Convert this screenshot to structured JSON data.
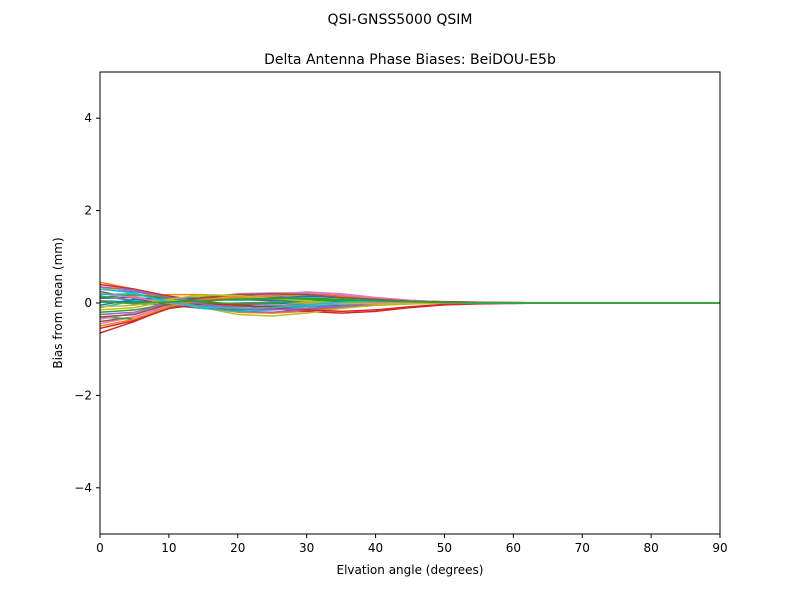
{
  "chart_data": {
    "type": "line",
    "suptitle": "QSI-GNSS5000    QSIM",
    "title": "Delta Antenna Phase Biases: BeiDOU-E5b",
    "xlabel": "Elvation angle (degrees)",
    "ylabel": "Bias from mean (mm)",
    "xlim": [
      0,
      90
    ],
    "ylim": [
      -5,
      5
    ],
    "xticks": [
      0,
      10,
      20,
      30,
      40,
      50,
      60,
      70,
      80,
      90
    ],
    "xtick_labels": [
      "0",
      "10",
      "20",
      "30",
      "40",
      "50",
      "60",
      "70",
      "80",
      "90"
    ],
    "yticks": [
      -4,
      -2,
      0,
      2,
      4
    ],
    "ytick_labels": [
      "−4",
      "−2",
      "0",
      "2",
      "4"
    ],
    "grid": false,
    "legend": "none",
    "x": [
      0,
      5,
      10,
      15,
      20,
      25,
      30,
      35,
      40,
      45,
      50,
      55,
      60,
      65,
      70,
      75,
      80,
      85,
      90
    ],
    "series": [
      {
        "color": "#1f77b4",
        "values": [
          0.1,
          0.12,
          0.05,
          0.0,
          -0.03,
          -0.02,
          0.02,
          0.05,
          0.05,
          0.03,
          0.02,
          0.01,
          0.0,
          0.0,
          0.0,
          0.0,
          0.0,
          0.0,
          0.0
        ]
      },
      {
        "color": "#ff7f0e",
        "values": [
          0.45,
          0.3,
          0.1,
          -0.1,
          -0.2,
          -0.22,
          -0.18,
          -0.1,
          -0.05,
          -0.02,
          0.0,
          0.01,
          0.01,
          0.0,
          0.0,
          0.0,
          0.0,
          0.0,
          0.0
        ]
      },
      {
        "color": "#2ca02c",
        "values": [
          -0.2,
          -0.15,
          -0.02,
          0.1,
          0.15,
          0.18,
          0.17,
          0.12,
          0.08,
          0.05,
          0.02,
          0.01,
          0.0,
          0.0,
          0.0,
          0.0,
          0.0,
          0.0,
          0.0
        ]
      },
      {
        "color": "#d62728",
        "values": [
          -0.65,
          -0.4,
          -0.1,
          0.0,
          -0.05,
          -0.12,
          -0.18,
          -0.22,
          -0.18,
          -0.1,
          -0.04,
          -0.02,
          -0.01,
          0.0,
          0.0,
          0.0,
          0.0,
          0.0,
          0.0
        ]
      },
      {
        "color": "#9467bd",
        "values": [
          0.3,
          0.25,
          0.1,
          -0.05,
          -0.18,
          -0.2,
          -0.15,
          -0.08,
          -0.03,
          0.0,
          0.01,
          0.01,
          0.0,
          0.0,
          0.0,
          0.0,
          0.0,
          0.0,
          0.0
        ]
      },
      {
        "color": "#8c564b",
        "values": [
          -0.4,
          -0.3,
          -0.05,
          0.1,
          0.15,
          0.18,
          0.2,
          0.15,
          0.1,
          0.05,
          0.03,
          0.02,
          0.01,
          0.0,
          0.0,
          0.0,
          0.0,
          0.0,
          0.0
        ]
      },
      {
        "color": "#e377c2",
        "values": [
          -0.45,
          -0.3,
          -0.05,
          0.12,
          0.2,
          0.22,
          0.22,
          0.18,
          0.1,
          0.05,
          0.02,
          0.01,
          0.0,
          0.0,
          0.0,
          0.0,
          0.0,
          0.0,
          0.0
        ]
      },
      {
        "color": "#7f7f7f",
        "values": [
          0.15,
          0.05,
          -0.02,
          -0.05,
          -0.08,
          -0.06,
          -0.02,
          0.01,
          0.02,
          0.01,
          0.0,
          0.0,
          0.0,
          0.0,
          0.0,
          0.0,
          0.0,
          0.0,
          0.0
        ]
      },
      {
        "color": "#bcbd22",
        "values": [
          0.35,
          0.2,
          0.08,
          -0.1,
          -0.25,
          -0.28,
          -0.22,
          -0.12,
          -0.05,
          -0.02,
          0.0,
          0.01,
          0.0,
          0.0,
          0.0,
          0.0,
          0.0,
          0.0,
          0.0
        ]
      },
      {
        "color": "#17becf",
        "values": [
          -0.1,
          0.05,
          0.1,
          0.08,
          0.06,
          0.08,
          0.1,
          0.08,
          0.05,
          0.03,
          0.01,
          0.0,
          0.0,
          0.0,
          0.0,
          0.0,
          0.0,
          0.0,
          0.0
        ]
      },
      {
        "color": "#1f77b4",
        "values": [
          0.05,
          0.02,
          0.02,
          0.05,
          0.08,
          0.12,
          0.14,
          0.12,
          0.08,
          0.04,
          0.02,
          0.01,
          0.0,
          0.0,
          0.0,
          0.0,
          0.0,
          0.0,
          0.0
        ]
      },
      {
        "color": "#ff7f0e",
        "values": [
          0.2,
          0.15,
          0.18,
          0.18,
          0.12,
          0.05,
          0.0,
          -0.02,
          -0.02,
          -0.01,
          0.0,
          0.0,
          0.0,
          0.0,
          0.0,
          0.0,
          0.0,
          0.0,
          0.0
        ]
      },
      {
        "color": "#2ca02c",
        "values": [
          -0.3,
          -0.35,
          -0.1,
          0.05,
          0.1,
          0.1,
          0.08,
          0.05,
          0.03,
          0.02,
          0.01,
          0.0,
          0.0,
          0.0,
          0.0,
          0.0,
          0.0,
          0.0,
          0.0
        ]
      },
      {
        "color": "#d62728",
        "values": [
          0.4,
          0.3,
          0.15,
          0.05,
          -0.05,
          -0.08,
          -0.08,
          -0.05,
          -0.03,
          -0.01,
          0.0,
          0.0,
          0.0,
          0.0,
          0.0,
          0.0,
          0.0,
          0.0,
          0.0
        ]
      },
      {
        "color": "#9467bd",
        "values": [
          -0.25,
          -0.2,
          0.0,
          0.08,
          0.08,
          0.05,
          0.02,
          0.0,
          -0.01,
          -0.01,
          0.0,
          0.0,
          0.0,
          0.0,
          0.0,
          0.0,
          0.0,
          0.0,
          0.0
        ]
      },
      {
        "color": "#8c564b",
        "values": [
          0.25,
          0.1,
          -0.05,
          -0.12,
          -0.15,
          -0.12,
          -0.05,
          0.02,
          0.05,
          0.03,
          0.01,
          0.0,
          0.0,
          0.0,
          0.0,
          0.0,
          0.0,
          0.0,
          0.0
        ]
      },
      {
        "color": "#e377c2",
        "values": [
          -0.35,
          -0.22,
          -0.05,
          0.05,
          0.12,
          0.18,
          0.24,
          0.2,
          0.12,
          0.06,
          0.02,
          0.01,
          0.0,
          0.0,
          0.0,
          0.0,
          0.0,
          0.0,
          0.0
        ]
      },
      {
        "color": "#7f7f7f",
        "values": [
          0.05,
          -0.02,
          -0.05,
          -0.03,
          0.0,
          0.02,
          0.03,
          0.02,
          0.01,
          0.0,
          0.0,
          0.0,
          0.0,
          0.0,
          0.0,
          0.0,
          0.0,
          0.0,
          0.0
        ]
      },
      {
        "color": "#bcbd22",
        "values": [
          -0.15,
          -0.1,
          0.05,
          0.15,
          0.12,
          0.06,
          0.0,
          -0.03,
          -0.03,
          -0.02,
          0.0,
          0.0,
          0.0,
          0.0,
          0.0,
          0.0,
          0.0,
          0.0,
          0.0
        ]
      },
      {
        "color": "#17becf",
        "values": [
          0.3,
          0.22,
          0.0,
          -0.12,
          -0.18,
          -0.15,
          -0.08,
          -0.02,
          0.02,
          0.02,
          0.01,
          0.0,
          0.0,
          0.0,
          0.0,
          0.0,
          0.0,
          0.0,
          0.0
        ]
      },
      {
        "color": "#1f77b4",
        "values": [
          -0.05,
          0.08,
          0.12,
          0.1,
          0.08,
          0.06,
          0.04,
          0.03,
          0.02,
          0.01,
          0.0,
          0.0,
          0.0,
          0.0,
          0.0,
          0.0,
          0.0,
          0.0,
          0.0
        ]
      },
      {
        "color": "#ff7f0e",
        "values": [
          -0.5,
          -0.35,
          -0.08,
          0.08,
          0.12,
          0.15,
          0.18,
          0.14,
          0.08,
          0.04,
          0.02,
          0.01,
          0.0,
          0.0,
          0.0,
          0.0,
          0.0,
          0.0,
          0.0
        ]
      },
      {
        "color": "#2ca02c",
        "values": [
          0.12,
          0.18,
          0.1,
          0.02,
          -0.02,
          0.0,
          0.04,
          0.06,
          0.05,
          0.03,
          0.01,
          0.0,
          0.0,
          0.0,
          0.0,
          0.0,
          0.0,
          0.0,
          0.0
        ]
      },
      {
        "color": "#d62728",
        "values": [
          -0.55,
          -0.38,
          -0.12,
          -0.02,
          -0.05,
          -0.1,
          -0.15,
          -0.18,
          -0.15,
          -0.08,
          -0.03,
          -0.01,
          0.0,
          0.0,
          0.0,
          0.0,
          0.0,
          0.0,
          0.0
        ]
      },
      {
        "color": "#9467bd",
        "values": [
          0.35,
          0.28,
          0.12,
          -0.02,
          -0.12,
          -0.15,
          -0.12,
          -0.06,
          -0.02,
          0.0,
          0.01,
          0.0,
          0.0,
          0.0,
          0.0,
          0.0,
          0.0,
          0.0,
          0.0
        ]
      },
      {
        "color": "#8c564b",
        "values": [
          -0.3,
          -0.25,
          -0.02,
          0.12,
          0.18,
          0.2,
          0.18,
          0.12,
          0.08,
          0.04,
          0.02,
          0.01,
          0.0,
          0.0,
          0.0,
          0.0,
          0.0,
          0.0,
          0.0
        ]
      },
      {
        "color": "#e377c2",
        "values": [
          0.2,
          0.12,
          0.0,
          -0.08,
          -0.12,
          -0.1,
          -0.04,
          0.0,
          0.02,
          0.01,
          0.0,
          0.0,
          0.0,
          0.0,
          0.0,
          0.0,
          0.0,
          0.0,
          0.0
        ]
      },
      {
        "color": "#bcbd22",
        "values": [
          -0.08,
          -0.05,
          0.08,
          0.18,
          0.16,
          0.1,
          0.04,
          0.0,
          -0.02,
          -0.01,
          0.0,
          0.0,
          0.0,
          0.0,
          0.0,
          0.0,
          0.0,
          0.0,
          0.0
        ]
      },
      {
        "color": "#17becf",
        "values": [
          0.18,
          0.2,
          0.02,
          -0.08,
          -0.12,
          -0.1,
          -0.04,
          0.02,
          0.04,
          0.03,
          0.01,
          0.0,
          0.0,
          0.0,
          0.0,
          0.0,
          0.0,
          0.0,
          0.0
        ]
      },
      {
        "color": "#2ca02c",
        "values": [
          0.02,
          0.0,
          0.02,
          0.05,
          0.08,
          0.1,
          0.1,
          0.08,
          0.05,
          0.03,
          0.01,
          0.0,
          0.0,
          0.0,
          0.0,
          0.0,
          0.0,
          0.0,
          0.0
        ]
      }
    ]
  }
}
